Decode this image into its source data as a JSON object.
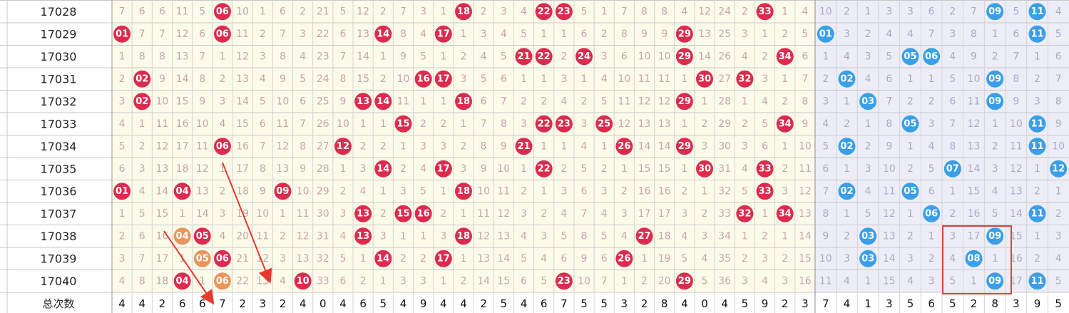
{
  "table": {
    "rows": [
      {
        "issue": "17028",
        "front": [
          "7",
          "6",
          "6",
          "11",
          "5",
          {
            "ball": "06",
            "style": "red"
          },
          "10",
          "1",
          "6",
          "2",
          "21",
          "5",
          "12",
          "2",
          "7",
          "3",
          "1",
          {
            "ball": "18",
            "style": "red"
          },
          "2",
          "3",
          "4",
          {
            "ball": "22",
            "style": "red"
          },
          {
            "ball": "23",
            "style": "red"
          },
          "5",
          "1",
          "7",
          "8",
          "8",
          "4",
          "12",
          "24",
          "2",
          {
            "ball": "33",
            "style": "red"
          },
          "1",
          "4"
        ],
        "back": [
          "10",
          "2",
          "1",
          "3",
          "3",
          "6",
          "2",
          "7",
          {
            "ball": "09",
            "style": "blue"
          },
          "5",
          {
            "ball": "11",
            "style": "blue"
          },
          "4"
        ]
      },
      {
        "issue": "17029",
        "front": [
          {
            "ball": "01",
            "style": "red"
          },
          "7",
          "7",
          "12",
          "6",
          {
            "ball": "06",
            "style": "red"
          },
          "11",
          "2",
          "7",
          "3",
          "22",
          "6",
          "13",
          {
            "ball": "14",
            "style": "red"
          },
          "8",
          "4",
          {
            "ball": "17",
            "style": "red"
          },
          "1",
          "3",
          "4",
          "5",
          "1",
          "1",
          "6",
          "2",
          "8",
          "9",
          "9",
          {
            "ball": "29",
            "style": "red"
          },
          "13",
          "25",
          "3",
          "1",
          "2",
          "5"
        ],
        "back": [
          {
            "ball": "01",
            "style": "blue"
          },
          "3",
          "2",
          "4",
          "4",
          "7",
          "3",
          "8",
          "1",
          "6",
          {
            "ball": "11",
            "style": "blue"
          },
          "5"
        ]
      },
      {
        "issue": "17030",
        "front": [
          "1",
          "8",
          "8",
          "13",
          "7",
          "1",
          "12",
          "3",
          "8",
          "4",
          "23",
          "7",
          "14",
          "1",
          "9",
          "5",
          "1",
          "2",
          "4",
          "5",
          {
            "ball": "21",
            "style": "red"
          },
          {
            "ball": "22",
            "style": "red"
          },
          "2",
          {
            "ball": "24",
            "style": "red"
          },
          "3",
          "6",
          "10",
          "10",
          {
            "ball": "29",
            "style": "red"
          },
          "14",
          "26",
          "4",
          "2",
          {
            "ball": "34",
            "style": "red"
          },
          "6"
        ],
        "back": [
          "1",
          "4",
          "3",
          "5",
          {
            "ball": "05",
            "style": "blue"
          },
          {
            "ball": "06",
            "style": "blue"
          },
          "4",
          "9",
          "2",
          "7",
          "1",
          "6"
        ]
      },
      {
        "issue": "17031",
        "front": [
          "2",
          {
            "ball": "02",
            "style": "red"
          },
          "9",
          "14",
          "8",
          "2",
          "13",
          "4",
          "9",
          "5",
          "24",
          "8",
          "15",
          "2",
          "10",
          {
            "ball": "16",
            "style": "red"
          },
          {
            "ball": "17",
            "style": "red"
          },
          "3",
          "5",
          "6",
          "1",
          "1",
          "3",
          "1",
          "4",
          "10",
          "11",
          "11",
          "1",
          {
            "ball": "30",
            "style": "red"
          },
          "27",
          {
            "ball": "32",
            "style": "red"
          },
          "3",
          "1",
          "7"
        ],
        "back": [
          "2",
          {
            "ball": "02",
            "style": "blue"
          },
          "4",
          "6",
          "1",
          "1",
          "5",
          "10",
          {
            "ball": "09",
            "style": "blue"
          },
          "8",
          "2",
          "7"
        ]
      },
      {
        "issue": "17032",
        "front": [
          "3",
          {
            "ball": "02",
            "style": "red"
          },
          "10",
          "15",
          "9",
          "3",
          "14",
          "5",
          "10",
          "6",
          "25",
          "9",
          {
            "ball": "13",
            "style": "red"
          },
          {
            "ball": "14",
            "style": "red"
          },
          "11",
          "1",
          "1",
          {
            "ball": "18",
            "style": "red"
          },
          "6",
          "7",
          "2",
          "2",
          "4",
          "2",
          "5",
          "11",
          "12",
          "12",
          {
            "ball": "29",
            "style": "red"
          },
          "1",
          "28",
          "1",
          "4",
          "2",
          "8"
        ],
        "back": [
          "3",
          "1",
          {
            "ball": "03",
            "style": "blue"
          },
          "7",
          "2",
          "2",
          "6",
          "11",
          {
            "ball": "09",
            "style": "blue"
          },
          "9",
          "3",
          "8"
        ]
      },
      {
        "issue": "17033",
        "front": [
          "4",
          "1",
          "11",
          "16",
          "10",
          "4",
          "15",
          "6",
          "11",
          "7",
          "26",
          "10",
          "1",
          "1",
          {
            "ball": "15",
            "style": "red"
          },
          "2",
          "2",
          "1",
          "7",
          "8",
          "3",
          {
            "ball": "22",
            "style": "red"
          },
          {
            "ball": "23",
            "style": "red"
          },
          "3",
          {
            "ball": "25",
            "style": "red"
          },
          "12",
          "13",
          "13",
          "1",
          "2",
          "29",
          "2",
          "5",
          {
            "ball": "34",
            "style": "red"
          },
          "9"
        ],
        "back": [
          "4",
          "2",
          "1",
          "8",
          {
            "ball": "05",
            "style": "blue"
          },
          "3",
          "7",
          "12",
          "1",
          "10",
          {
            "ball": "11",
            "style": "blue"
          },
          "9"
        ]
      },
      {
        "issue": "17034",
        "front": [
          "5",
          "2",
          "12",
          "17",
          "11",
          {
            "ball": "06",
            "style": "red"
          },
          "16",
          "7",
          "12",
          "8",
          "27",
          {
            "ball": "12",
            "style": "red"
          },
          "2",
          "2",
          "1",
          "3",
          "3",
          "2",
          "8",
          "9",
          {
            "ball": "21",
            "style": "red"
          },
          "1",
          "1",
          "4",
          "1",
          {
            "ball": "26",
            "style": "red"
          },
          "14",
          "14",
          {
            "ball": "29",
            "style": "red"
          },
          "3",
          "30",
          "3",
          "6",
          "1",
          "10"
        ],
        "back": [
          "5",
          {
            "ball": "02",
            "style": "blue"
          },
          "2",
          "9",
          "1",
          "4",
          "8",
          "13",
          "2",
          "11",
          {
            "ball": "11",
            "style": "blue"
          },
          "10"
        ]
      },
      {
        "issue": "17035",
        "front": [
          "6",
          "3",
          "13",
          "18",
          "12",
          "1",
          "17",
          "8",
          "13",
          "9",
          "28",
          "1",
          "3",
          {
            "ball": "14",
            "style": "red"
          },
          "2",
          "4",
          {
            "ball": "17",
            "style": "red"
          },
          "3",
          "9",
          "10",
          "1",
          {
            "ball": "22",
            "style": "red"
          },
          "2",
          "5",
          "2",
          "1",
          "15",
          "15",
          "1",
          {
            "ball": "30",
            "style": "red"
          },
          "31",
          "4",
          {
            "ball": "33",
            "style": "red"
          },
          "2",
          "11"
        ],
        "back": [
          "6",
          "1",
          "3",
          "10",
          "2",
          "5",
          {
            "ball": "07",
            "style": "blue"
          },
          "14",
          "3",
          "12",
          "1",
          {
            "ball": "12",
            "style": "blue"
          }
        ]
      },
      {
        "issue": "17036",
        "front": [
          {
            "ball": "01",
            "style": "red"
          },
          "4",
          "14",
          {
            "ball": "04",
            "style": "red"
          },
          "13",
          "2",
          "18",
          "9",
          {
            "ball": "09",
            "style": "red"
          },
          "10",
          "29",
          "2",
          "4",
          "1",
          "3",
          "5",
          "1",
          {
            "ball": "18",
            "style": "red"
          },
          "10",
          "11",
          "2",
          "1",
          "3",
          "6",
          "3",
          "2",
          "16",
          "16",
          "2",
          "1",
          "32",
          "5",
          {
            "ball": "33",
            "style": "red"
          },
          "3",
          "12"
        ],
        "back": [
          "7",
          {
            "ball": "02",
            "style": "blue"
          },
          "4",
          "11",
          {
            "ball": "05",
            "style": "blue"
          },
          "6",
          "1",
          "15",
          "4",
          "13",
          "2",
          "1"
        ]
      },
      {
        "issue": "17037",
        "front": [
          "1",
          "5",
          "15",
          "1",
          "14",
          "3",
          "19",
          "10",
          "1",
          "11",
          "30",
          "3",
          {
            "ball": "13",
            "style": "red"
          },
          "2",
          {
            "ball": "15",
            "style": "red"
          },
          {
            "ball": "16",
            "style": "red"
          },
          "2",
          "1",
          "11",
          "12",
          "3",
          "2",
          "4",
          "7",
          "4",
          "3",
          "17",
          "17",
          "3",
          "2",
          "33",
          {
            "ball": "32",
            "style": "red"
          },
          "1",
          {
            "ball": "34",
            "style": "red"
          },
          "13"
        ],
        "back": [
          "8",
          "1",
          "5",
          "12",
          "1",
          {
            "ball": "06",
            "style": "blue"
          },
          "2",
          "16",
          "5",
          "14",
          {
            "ball": "11",
            "style": "blue"
          },
          "2"
        ]
      },
      {
        "issue": "17038",
        "front": [
          "2",
          "6",
          "16",
          {
            "ball": "04",
            "style": "orange"
          },
          {
            "ball": "05",
            "style": "red"
          },
          "4",
          "20",
          "11",
          "2",
          "12",
          "31",
          "4",
          {
            "ball": "13",
            "style": "red"
          },
          "3",
          "1",
          "1",
          "3",
          {
            "ball": "18",
            "style": "red"
          },
          "12",
          "13",
          "4",
          "3",
          "5",
          "8",
          "5",
          "4",
          {
            "ball": "27",
            "style": "red"
          },
          "18",
          "4",
          "3",
          "34",
          "1",
          "2",
          "1",
          "14"
        ],
        "back": [
          "9",
          "2",
          {
            "ball": "03",
            "style": "blue"
          },
          "13",
          "2",
          "1",
          "3",
          "17",
          {
            "ball": "09",
            "style": "blue"
          },
          "15",
          "1",
          "3"
        ]
      },
      {
        "issue": "17039",
        "front": [
          "3",
          "7",
          "17",
          "1",
          {
            "ball": "05",
            "style": "orange"
          },
          {
            "ball": "06",
            "style": "red"
          },
          "21",
          "12",
          "3",
          "13",
          "32",
          "5",
          "1",
          {
            "ball": "14",
            "style": "red"
          },
          "2",
          "2",
          {
            "ball": "17",
            "style": "red"
          },
          "1",
          "13",
          "14",
          "5",
          "4",
          "6",
          "9",
          "6",
          {
            "ball": "26",
            "style": "red"
          },
          "1",
          "19",
          "5",
          "4",
          "35",
          "2",
          "3",
          "2",
          "15"
        ],
        "back": [
          "10",
          "3",
          {
            "ball": "03",
            "style": "blue"
          },
          "14",
          "3",
          "2",
          "4",
          {
            "ball": "08",
            "style": "blue"
          },
          "1",
          "16",
          "2",
          "4"
        ]
      },
      {
        "issue": "17040",
        "front": [
          "4",
          "8",
          "18",
          {
            "ball": "04",
            "style": "red"
          },
          "1",
          {
            "ball": "06",
            "style": "orange"
          },
          "22",
          "13",
          "4",
          {
            "ball": "10",
            "style": "red"
          },
          "33",
          "6",
          "2",
          "1",
          "3",
          "3",
          "1",
          "2",
          "14",
          "15",
          "6",
          "5",
          {
            "ball": "23",
            "style": "red"
          },
          "10",
          "7",
          "1",
          "2",
          "20",
          {
            "ball": "29",
            "style": "red"
          },
          "5",
          "36",
          "3",
          "4",
          "3",
          "16"
        ],
        "back": [
          "11",
          "4",
          "1",
          "15",
          "4",
          "3",
          "5",
          "1",
          {
            "ball": "09",
            "style": "blue"
          },
          "17",
          {
            "ball": "11",
            "style": "blue"
          },
          "5"
        ]
      }
    ],
    "totals": {
      "label": "总次数",
      "values": [
        4,
        4,
        2,
        6,
        6,
        7,
        2,
        3,
        2,
        4,
        0,
        4,
        6,
        5,
        4,
        9,
        4,
        4,
        2,
        5,
        4,
        6,
        7,
        5,
        5,
        3,
        2,
        8,
        4,
        0,
        4,
        5,
        9,
        2,
        3,
        7,
        4,
        1,
        3,
        5,
        6,
        5,
        2,
        8,
        3,
        9,
        5
      ]
    }
  }
}
